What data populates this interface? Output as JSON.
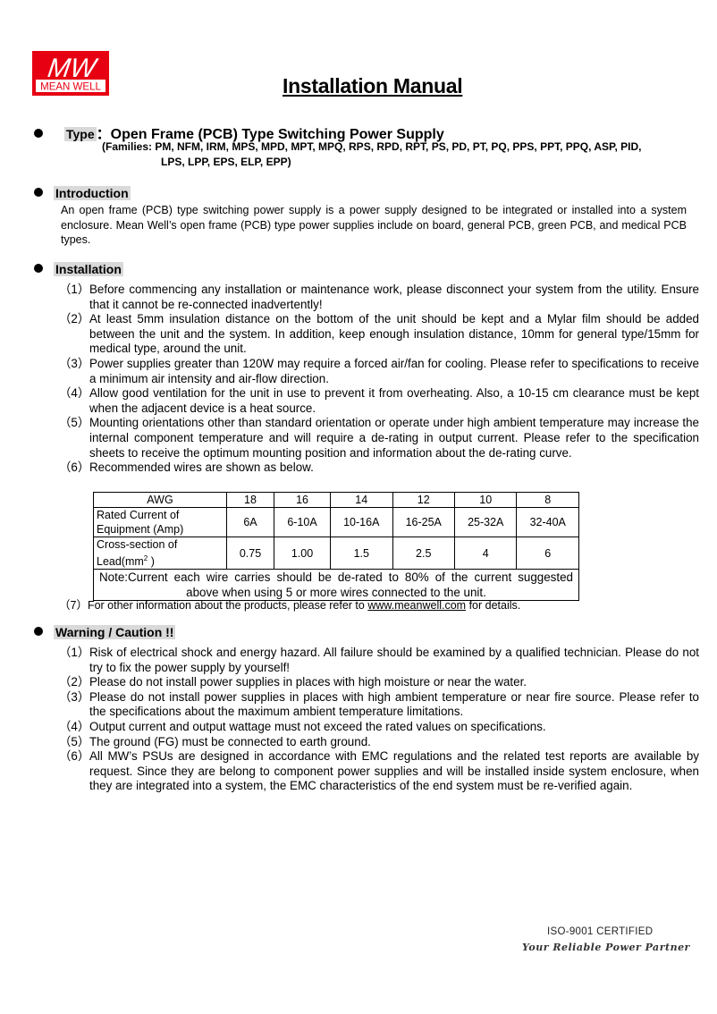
{
  "header": {
    "logo_text": "MW",
    "logo_subtext": "MEAN WELL",
    "brand_color": "#e60012",
    "title": "Installation Manual"
  },
  "type_section": {
    "label": "Type",
    "separator": "：",
    "value": "Open Frame (PCB) Type Switching Power Supply",
    "families_line1": "(Families: PM, NFM, IRM, MPS, MPD, MPT, MPQ, RPS, RPD, RPT, PS, PD, PT, PQ, PPS, PPT, PPQ, ASP, PID,",
    "families_line2": "LPS, LPP, EPS, ELP, EPP)"
  },
  "introduction": {
    "label": "Introduction",
    "text": "An open frame (PCB) type switching power supply is a power supply designed to be integrated or installed into a system enclosure. Mean Well’s open frame (PCB) type power supplies include on board, general PCB, green PCB, and medical PCB types."
  },
  "installation": {
    "label": "Installation",
    "items": [
      {
        "num": "（1）",
        "text": "Before commencing any installation or maintenance work, please disconnect your system from the utility. Ensure that it cannot be re-connected inadvertently!"
      },
      {
        "num": "（2）",
        "text": "At least 5mm insulation distance on the bottom of the unit should be kept and a Mylar film should be added between the unit and the system. In addition, keep enough insulation distance, 10mm for general type/15mm for medical type, around the unit."
      },
      {
        "num": "（3）",
        "text": "Power supplies greater than 120W may require a forced air/fan for cooling. Please refer to specifications to receive a minimum air intensity and air-flow direction."
      },
      {
        "num": "（4）",
        "text": "Allow good ventilation for the unit in use to prevent it from overheating. Also, a 10-15 cm clearance must be kept when the adjacent device is a heat source."
      },
      {
        "num": "（5）",
        "text": "Mounting orientations other than standard orientation or operate under high ambient temperature may increase the internal component temperature and will require a de-rating in output current. Please refer to the specification sheets to receive the optimum mounting position and information about the de-rating curve."
      },
      {
        "num": "（6）",
        "text": "Recommended wires are shown as below."
      }
    ],
    "wire_table": {
      "header_label": "AWG",
      "awg": [
        "18",
        "16",
        "14",
        "12",
        "10",
        "8"
      ],
      "current_label_line1": "Rated Current of",
      "current_label_line2": "Equipment (Amp)",
      "current": [
        "6A",
        "6-10A",
        "10-16A",
        "16-25A",
        "25-32A",
        "32-40A"
      ],
      "section_label_line1": "Cross-section of",
      "section_label_line2": "Lead(mm",
      "section_label_sup": "2",
      "section_label_end": " )",
      "section": [
        "0.75",
        "1.00",
        "1.5",
        "2.5",
        "4",
        "6"
      ],
      "note": "Note:Current each wire carries should be de-rated to 80% of the current suggested above when using 5 or more wires connected to the unit."
    },
    "item7": {
      "num": "（7）",
      "text_before": "For other information about the products, please refer to ",
      "link": "www.meanwell.com",
      "text_after": " for details."
    }
  },
  "warning": {
    "label": "Warning / Caution !!",
    "items": [
      {
        "num": "（1）",
        "text": "Risk of electrical shock and energy hazard. All failure should be examined by a qualified technician. Please do not try to fix the power supply by yourself!"
      },
      {
        "num": "（2）",
        "text": "Please do not install power supplies in places with high moisture or near the water."
      },
      {
        "num": "（3）",
        "text": "Please do not install power supplies in places with high ambient temperature or near fire source. Please refer to the specifications about the maximum ambient temperature limitations."
      },
      {
        "num": "（4）",
        "text": "Output current and output wattage must not exceed the rated values on specifications."
      },
      {
        "num": "（5）",
        "text": "The ground (FG) must be connected to earth ground."
      },
      {
        "num": "（6）",
        "text": "All MW’s PSUs are designed in accordance with EMC regulations and the related test reports are available by request. Since they are belong to component power supplies and will be installed inside system enclosure, when they are integrated into a system, the EMC characteristics of the end system must be re-verified again."
      }
    ]
  },
  "footer": {
    "certification": "ISO-9001 CERTIFIED",
    "slogan": "Your Reliable Power Partner"
  }
}
